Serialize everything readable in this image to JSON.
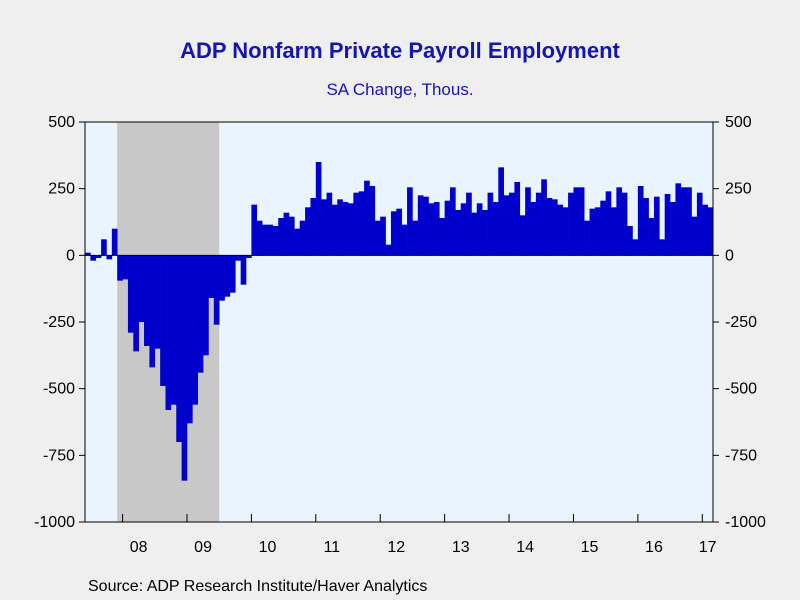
{
  "chart_data": {
    "type": "bar",
    "title": "ADP Nonfarm Private Payroll Employment",
    "subtitle": "SA Change, Thous.",
    "source": "Source:  ADP Research Institute/Haver Analytics",
    "ylim": [
      -1000,
      500
    ],
    "y_ticks": [
      "500",
      "250",
      "0",
      "-250",
      "-500",
      "-750",
      "-1000"
    ],
    "x_tick_labels": [
      "08",
      "09",
      "10",
      "11",
      "12",
      "13",
      "14",
      "15",
      "16",
      "17"
    ],
    "x_start": "2007-06",
    "grid": false,
    "recession_shading": {
      "start": "2007-12",
      "end": "2009-06"
    },
    "colors": {
      "bars": "#0000cc",
      "plot_bg": "#eaf4ff",
      "recession": "#c8c8c8",
      "title": "#1515b0"
    },
    "values": [
      10,
      -20,
      -10,
      60,
      -15,
      100,
      -95,
      -90,
      -290,
      -360,
      -250,
      -340,
      -420,
      -350,
      -490,
      -580,
      -560,
      -700,
      -845,
      -630,
      -560,
      -440,
      -375,
      -160,
      -260,
      -170,
      -155,
      -140,
      -20,
      -110,
      -10,
      190,
      130,
      115,
      115,
      110,
      140,
      160,
      145,
      100,
      130,
      180,
      215,
      350,
      210,
      235,
      190,
      210,
      200,
      195,
      235,
      240,
      280,
      260,
      130,
      145,
      40,
      165,
      175,
      115,
      255,
      130,
      225,
      220,
      195,
      200,
      140,
      205,
      255,
      170,
      195,
      235,
      160,
      195,
      170,
      235,
      200,
      330,
      225,
      235,
      275,
      150,
      255,
      200,
      235,
      285,
      215,
      210,
      190,
      180,
      235,
      255,
      255,
      130,
      175,
      180,
      205,
      240,
      180,
      255,
      235,
      110,
      60,
      260,
      215,
      140,
      220,
      60,
      230,
      200,
      270,
      255,
      255,
      145,
      235,
      190,
      180
    ]
  }
}
